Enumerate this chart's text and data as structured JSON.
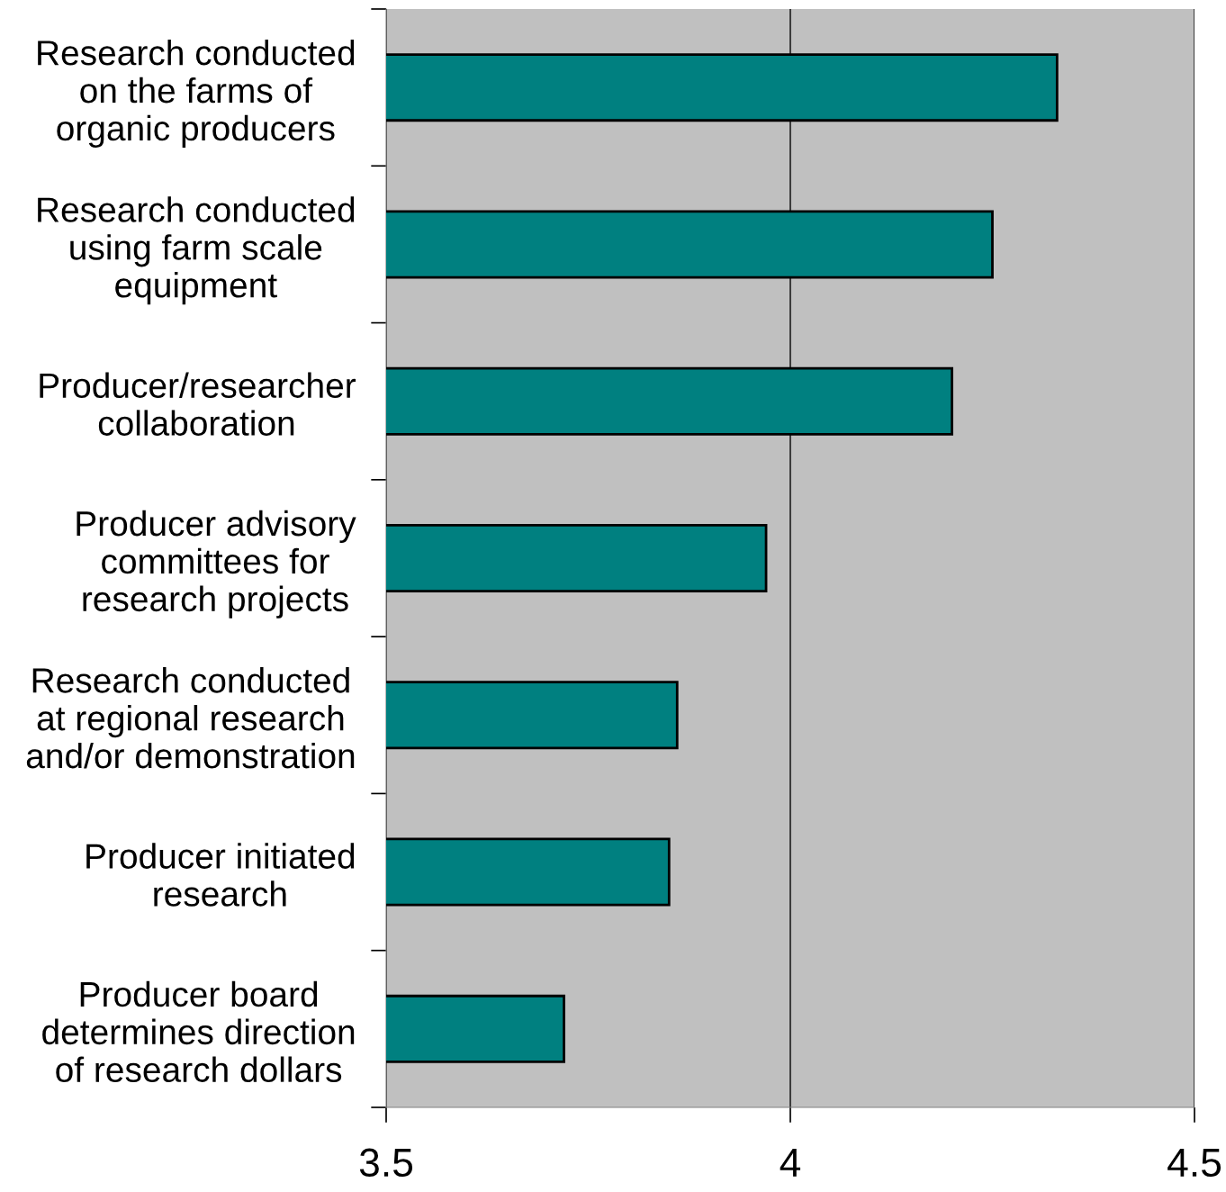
{
  "chart_data": {
    "type": "bar",
    "orientation": "horizontal",
    "categories": [
      "Research conducted\non the farms of\norganic producers",
      "Research conducted\nusing farm scale\nequipment",
      "Producer/researcher\ncollaboration",
      "Producer advisory\ncommittees for\nresearch projects",
      "Research conducted\nat regional research\nand/or demonstration",
      "Producer initiated\nresearch",
      "Producer board\ndetermines direction\nof research dollars"
    ],
    "values": [
      4.33,
      4.25,
      4.2,
      3.97,
      3.86,
      3.85,
      3.72
    ],
    "color": "#008080",
    "xlim": [
      3.5,
      4.5
    ],
    "xticks": [
      3.5,
      4,
      4.5
    ],
    "grid": "x"
  }
}
